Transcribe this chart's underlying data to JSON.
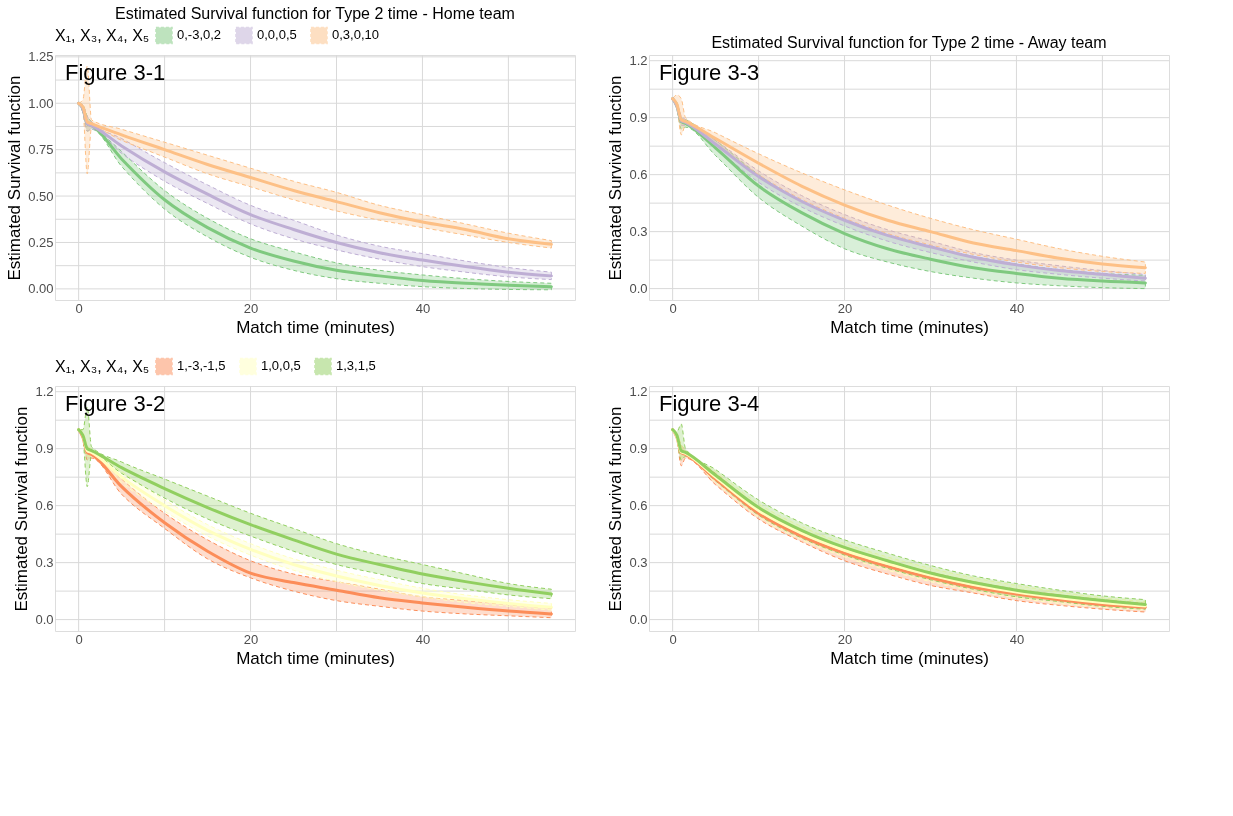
{
  "chart_data": [
    {
      "type": "line",
      "title": "Estimated Survival function for Type 2 time - Home team",
      "xlabel": "Match time (minutes)",
      "ylabel": "Estimated Survival function",
      "legend_title": "X₁, X₃, X₄, X₅",
      "legend": "top",
      "grid": true,
      "annotations": [
        "Figure 3-1"
      ],
      "xlim": [
        -2.75,
        57.75
      ],
      "xticks": [
        0,
        {
          "value": 10,
          "label": null
        },
        20,
        {
          "value": 30,
          "label": null
        },
        40,
        {
          "value": 50,
          "label": null
        }
      ],
      "ylim": [
        -0.06,
        1.26
      ],
      "yticks": [
        {
          "value": 0,
          "label": "0.00"
        },
        {
          "value": 0.125,
          "label": null
        },
        {
          "value": 0.25,
          "label": "0.25"
        },
        {
          "value": 0.375,
          "label": null
        },
        {
          "value": 0.5,
          "label": "0.50"
        },
        {
          "value": 0.625,
          "label": null
        },
        {
          "value": 0.75,
          "label": "0.75"
        },
        {
          "value": 0.875,
          "label": null
        },
        {
          "value": 1,
          "label": "1.00"
        },
        {
          "value": 1.125,
          "label": null
        },
        {
          "value": 1.25,
          "label": "1.25"
        }
      ],
      "x": [
        0,
        0.5,
        1,
        1.5,
        5,
        10,
        15,
        20,
        25,
        30,
        35,
        40,
        45,
        50,
        55
      ],
      "series": [
        {
          "name": "0,-3,0,2",
          "color": "#7fc97f",
          "values": [
            1,
            0.97,
            0.89,
            0.88,
            0.7,
            0.48,
            0.33,
            0.22,
            0.15,
            0.1,
            0.07,
            0.045,
            0.03,
            0.02,
            0.012
          ],
          "lower": [
            1,
            0.95,
            0.85,
            0.86,
            0.66,
            0.43,
            0.28,
            0.17,
            0.1,
            0.055,
            0.03,
            0.012,
            0.002,
            -0.003,
            -0.005
          ],
          "upper": [
            1,
            0.99,
            0.93,
            0.9,
            0.74,
            0.53,
            0.38,
            0.27,
            0.2,
            0.14,
            0.1,
            0.075,
            0.055,
            0.04,
            0.03
          ]
        },
        {
          "name": "0,0,0,5",
          "color": "#beaed4",
          "values": [
            1,
            0.97,
            0.89,
            0.88,
            0.77,
            0.63,
            0.51,
            0.4,
            0.32,
            0.25,
            0.195,
            0.155,
            0.12,
            0.09,
            0.07
          ],
          "lower": [
            1,
            0.95,
            0.85,
            0.86,
            0.73,
            0.58,
            0.46,
            0.35,
            0.27,
            0.21,
            0.16,
            0.12,
            0.09,
            0.065,
            0.05
          ],
          "upper": [
            1,
            0.99,
            0.93,
            0.9,
            0.81,
            0.68,
            0.56,
            0.45,
            0.37,
            0.29,
            0.23,
            0.19,
            0.15,
            0.115,
            0.09
          ]
        },
        {
          "name": "0,3,0,10",
          "color": "#fdc086",
          "values": [
            1,
            0.98,
            0.9,
            0.89,
            0.83,
            0.75,
            0.67,
            0.6,
            0.53,
            0.47,
            0.41,
            0.36,
            0.32,
            0.27,
            0.24
          ],
          "lower": [
            1,
            0.96,
            0.62,
            0.87,
            0.8,
            0.71,
            0.62,
            0.55,
            0.48,
            0.42,
            0.37,
            0.33,
            0.29,
            0.25,
            0.22
          ],
          "upper": [
            1,
            1.02,
            1.2,
            0.91,
            0.86,
            0.79,
            0.72,
            0.65,
            0.58,
            0.52,
            0.45,
            0.4,
            0.35,
            0.3,
            0.26
          ]
        }
      ]
    },
    {
      "type": "line",
      "title": "Estimated Survival function for Type 2 time - Away team",
      "xlabel": "Match time (minutes)",
      "ylabel": "Estimated Survival function",
      "grid": true,
      "annotations": [
        "Figure 3-3"
      ],
      "xlim": [
        -2.75,
        57.75
      ],
      "xticks": [
        0,
        {
          "value": 10,
          "label": null
        },
        20,
        {
          "value": 30,
          "label": null
        },
        40,
        {
          "value": 50,
          "label": null
        }
      ],
      "ylim": [
        -0.06,
        1.23
      ],
      "yticks": [
        {
          "value": 0,
          "label": "0.0"
        },
        {
          "value": 0.15,
          "label": null
        },
        0.3,
        {
          "value": 0.45,
          "label": null
        },
        0.6,
        {
          "value": 0.75,
          "label": null
        },
        0.9,
        {
          "value": 1.05,
          "label": null
        },
        1.2
      ],
      "x": [
        0,
        0.5,
        1,
        1.5,
        5,
        10,
        15,
        20,
        25,
        30,
        35,
        40,
        45,
        50,
        55
      ],
      "series": [
        {
          "color": "#7fc97f",
          "values": [
            1,
            0.96,
            0.88,
            0.87,
            0.74,
            0.54,
            0.4,
            0.29,
            0.21,
            0.155,
            0.11,
            0.08,
            0.055,
            0.04,
            0.03
          ],
          "lower": [
            1,
            0.95,
            0.84,
            0.85,
            0.7,
            0.48,
            0.33,
            0.21,
            0.14,
            0.09,
            0.055,
            0.03,
            0.015,
            0.005,
            0.0
          ],
          "upper": [
            1,
            0.98,
            0.9,
            0.89,
            0.78,
            0.6,
            0.46,
            0.36,
            0.28,
            0.22,
            0.17,
            0.13,
            0.1,
            0.08,
            0.07
          ]
        },
        {
          "color": "#beaed4",
          "values": [
            1,
            0.96,
            0.885,
            0.875,
            0.76,
            0.59,
            0.46,
            0.36,
            0.28,
            0.22,
            0.165,
            0.125,
            0.095,
            0.075,
            0.055
          ],
          "lower": [
            1,
            0.95,
            0.86,
            0.86,
            0.74,
            0.56,
            0.43,
            0.33,
            0.25,
            0.19,
            0.14,
            0.1,
            0.075,
            0.055,
            0.04
          ],
          "upper": [
            1,
            0.97,
            0.91,
            0.89,
            0.78,
            0.62,
            0.49,
            0.39,
            0.31,
            0.25,
            0.19,
            0.15,
            0.12,
            0.095,
            0.075
          ]
        },
        {
          "color": "#fdc086",
          "values": [
            1,
            0.97,
            0.89,
            0.88,
            0.79,
            0.66,
            0.54,
            0.44,
            0.36,
            0.3,
            0.24,
            0.2,
            0.16,
            0.13,
            0.11
          ],
          "lower": [
            1,
            0.96,
            0.81,
            0.86,
            0.76,
            0.6,
            0.47,
            0.37,
            0.29,
            0.23,
            0.18,
            0.14,
            0.11,
            0.09,
            0.08
          ],
          "upper": [
            1,
            1.02,
            1.0,
            0.9,
            0.82,
            0.71,
            0.61,
            0.52,
            0.44,
            0.37,
            0.31,
            0.26,
            0.21,
            0.17,
            0.14
          ]
        }
      ]
    },
    {
      "type": "line",
      "xlabel": "Match time (minutes)",
      "ylabel": "Estimated Survival function",
      "legend_title": "X₁, X₃, X₄, X₅",
      "legend": "top",
      "grid": true,
      "annotations": [
        "Figure 3-2"
      ],
      "xlim": [
        -2.75,
        57.75
      ],
      "xticks": [
        0,
        {
          "value": 10,
          "label": null
        },
        20,
        {
          "value": 30,
          "label": null
        },
        40,
        {
          "value": 50,
          "label": null
        }
      ],
      "ylim": [
        -0.06,
        1.23
      ],
      "yticks": [
        {
          "value": 0,
          "label": "0.0"
        },
        {
          "value": 0.15,
          "label": null
        },
        0.3,
        {
          "value": 0.45,
          "label": null
        },
        0.6,
        {
          "value": 0.75,
          "label": null
        },
        0.9,
        {
          "value": 1.05,
          "label": null
        },
        1.2
      ],
      "x": [
        0,
        0.5,
        1,
        1.5,
        5,
        10,
        15,
        20,
        25,
        30,
        35,
        40,
        45,
        50,
        55
      ],
      "series": [
        {
          "name": "1,-3,-1,5",
          "color": "#fc8d59",
          "values": [
            1,
            0.96,
            0.88,
            0.87,
            0.7,
            0.51,
            0.36,
            0.245,
            0.195,
            0.155,
            0.115,
            0.088,
            0.065,
            0.045,
            0.03
          ],
          "lower": [
            1,
            0.95,
            0.84,
            0.85,
            0.66,
            0.48,
            0.32,
            0.22,
            0.15,
            0.1,
            0.07,
            0.045,
            0.03,
            0.02,
            0.01
          ],
          "upper": [
            1,
            0.98,
            0.91,
            0.89,
            0.74,
            0.56,
            0.42,
            0.31,
            0.24,
            0.2,
            0.16,
            0.12,
            0.1,
            0.08,
            0.06
          ]
        },
        {
          "name": "1,0,0,5",
          "color": "#ffffbf",
          "values": [
            1,
            0.97,
            0.89,
            0.88,
            0.75,
            0.6,
            0.47,
            0.37,
            0.29,
            0.23,
            0.18,
            0.14,
            0.11,
            0.085,
            0.065
          ],
          "lower": [
            1,
            0.96,
            0.86,
            0.86,
            0.72,
            0.57,
            0.44,
            0.34,
            0.26,
            0.2,
            0.155,
            0.12,
            0.09,
            0.07,
            0.05
          ],
          "upper": [
            1,
            0.98,
            0.92,
            0.9,
            0.78,
            0.63,
            0.5,
            0.4,
            0.32,
            0.26,
            0.21,
            0.165,
            0.13,
            0.105,
            0.085
          ]
        },
        {
          "name": "1,3,1,5",
          "color": "#91cf60",
          "values": [
            1,
            0.97,
            0.9,
            0.89,
            0.8,
            0.69,
            0.59,
            0.5,
            0.42,
            0.345,
            0.29,
            0.24,
            0.2,
            0.165,
            0.135
          ],
          "lower": [
            1,
            0.95,
            0.7,
            0.87,
            0.77,
            0.64,
            0.53,
            0.44,
            0.36,
            0.29,
            0.24,
            0.19,
            0.16,
            0.13,
            0.11
          ],
          "upper": [
            1,
            1.0,
            1.12,
            0.91,
            0.83,
            0.74,
            0.65,
            0.56,
            0.48,
            0.4,
            0.34,
            0.29,
            0.24,
            0.19,
            0.16
          ]
        }
      ]
    },
    {
      "type": "line",
      "xlabel": "Match time (minutes)",
      "ylabel": "Estimated Survival function",
      "grid": true,
      "annotations": [
        "Figure 3-4"
      ],
      "xlim": [
        -2.75,
        57.75
      ],
      "xticks": [
        0,
        {
          "value": 10,
          "label": null
        },
        20,
        {
          "value": 30,
          "label": null
        },
        40,
        {
          "value": 50,
          "label": null
        }
      ],
      "ylim": [
        -0.06,
        1.23
      ],
      "yticks": [
        {
          "value": 0,
          "label": "0.0"
        },
        {
          "value": 0.15,
          "label": null
        },
        0.3,
        {
          "value": 0.45,
          "label": null
        },
        0.6,
        {
          "value": 0.75,
          "label": null
        },
        0.9,
        {
          "value": 1.05,
          "label": null
        },
        1.2
      ],
      "x": [
        0,
        0.5,
        1,
        1.5,
        5,
        10,
        15,
        20,
        25,
        30,
        35,
        40,
        45,
        50,
        55
      ],
      "series": [
        {
          "color": "#fc8d59",
          "values": [
            1,
            0.96,
            0.88,
            0.87,
            0.74,
            0.56,
            0.44,
            0.35,
            0.28,
            0.22,
            0.17,
            0.135,
            0.105,
            0.08,
            0.065
          ],
          "lower": [
            1,
            0.95,
            0.81,
            0.85,
            0.71,
            0.53,
            0.41,
            0.31,
            0.24,
            0.18,
            0.14,
            0.1,
            0.075,
            0.055,
            0.04
          ],
          "upper": [
            1,
            0.97,
            0.92,
            0.89,
            0.77,
            0.59,
            0.47,
            0.38,
            0.31,
            0.25,
            0.2,
            0.16,
            0.13,
            0.105,
            0.085
          ]
        },
        {
          "color": "#ffffbf",
          "values": [
            1,
            0.965,
            0.885,
            0.875,
            0.75,
            0.575,
            0.455,
            0.365,
            0.295,
            0.235,
            0.185,
            0.145,
            0.115,
            0.09,
            0.072
          ],
          "lower": [
            1,
            0.95,
            0.85,
            0.86,
            0.72,
            0.54,
            0.42,
            0.33,
            0.26,
            0.2,
            0.15,
            0.115,
            0.085,
            0.065,
            0.05
          ],
          "upper": [
            1,
            0.98,
            0.92,
            0.89,
            0.78,
            0.61,
            0.49,
            0.4,
            0.33,
            0.27,
            0.22,
            0.18,
            0.145,
            0.115,
            0.095
          ]
        },
        {
          "color": "#91cf60",
          "values": [
            1,
            0.97,
            0.89,
            0.88,
            0.76,
            0.59,
            0.47,
            0.38,
            0.31,
            0.245,
            0.195,
            0.155,
            0.125,
            0.1,
            0.08
          ],
          "lower": [
            1,
            0.95,
            0.84,
            0.86,
            0.73,
            0.55,
            0.43,
            0.34,
            0.27,
            0.21,
            0.16,
            0.12,
            0.095,
            0.07,
            0.055
          ],
          "upper": [
            1,
            0.99,
            1.03,
            0.9,
            0.79,
            0.63,
            0.51,
            0.42,
            0.35,
            0.285,
            0.23,
            0.19,
            0.155,
            0.125,
            0.105
          ]
        }
      ]
    }
  ]
}
